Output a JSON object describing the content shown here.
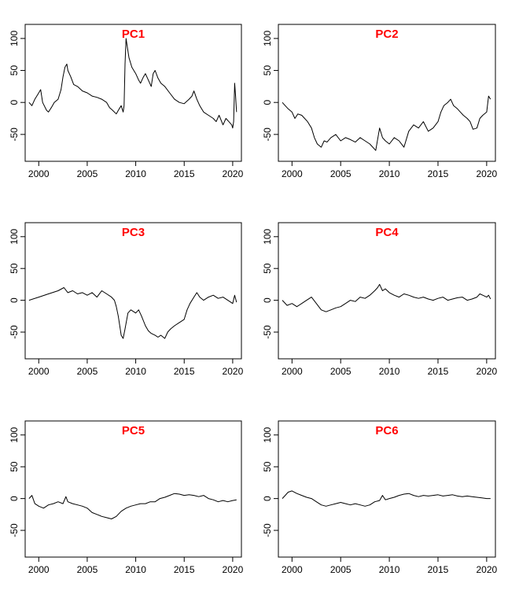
{
  "figure": {
    "background": "#ffffff",
    "line_color": "#000000",
    "title_color": "#ff0000"
  },
  "chart_data": [
    {
      "type": "line",
      "title": "PC1",
      "xlabel": "",
      "ylabel": "",
      "xlim": [
        1998.6,
        2020.9
      ],
      "ylim": [
        -92,
        122
      ],
      "xticks": [
        2000,
        2005,
        2010,
        2015,
        2020
      ],
      "yticks": [
        -50,
        0,
        50,
        100
      ],
      "grid": false,
      "series": [
        {
          "x": [
            1999.0,
            1999.3,
            1999.6,
            2000.0,
            2000.2,
            2000.4,
            2000.8,
            2001.0,
            2001.3,
            2001.6,
            2002.0,
            2002.3,
            2002.5,
            2002.7,
            2002.9,
            2003.0,
            2003.3,
            2003.6,
            2004.0,
            2004.5,
            2005.0,
            2005.5,
            2006.0,
            2006.5,
            2007.0,
            2007.3,
            2007.6,
            2008.0,
            2008.3,
            2008.5,
            2008.7,
            2008.8,
            2008.9,
            2009.0,
            2009.1,
            2009.3,
            2009.6,
            2010.0,
            2010.3,
            2010.5,
            2010.8,
            2011.0,
            2011.3,
            2011.6,
            2011.8,
            2012.0,
            2012.3,
            2012.6,
            2013.0,
            2013.5,
            2014.0,
            2014.5,
            2015.0,
            2015.5,
            2015.8,
            2016.0,
            2016.3,
            2016.6,
            2017.0,
            2017.5,
            2018.0,
            2018.3,
            2018.6,
            2019.0,
            2019.3,
            2019.6,
            2019.9,
            2020.0,
            2020.1,
            2020.2,
            2020.3,
            2020.4
          ],
          "y": [
            0,
            -5,
            5,
            15,
            20,
            0,
            -12,
            -15,
            -8,
            0,
            5,
            20,
            40,
            55,
            60,
            50,
            40,
            28,
            25,
            18,
            15,
            10,
            8,
            5,
            0,
            -8,
            -12,
            -18,
            -10,
            -5,
            -15,
            -5,
            60,
            100,
            90,
            70,
            55,
            45,
            35,
            30,
            40,
            45,
            35,
            25,
            45,
            50,
            38,
            30,
            25,
            15,
            5,
            0,
            -2,
            5,
            10,
            18,
            5,
            -5,
            -15,
            -20,
            -25,
            -30,
            -20,
            -35,
            -25,
            -30,
            -35,
            -40,
            -30,
            30,
            10,
            -15
          ]
        }
      ]
    },
    {
      "type": "line",
      "title": "PC2",
      "xlabel": "",
      "ylabel": "",
      "xlim": [
        1998.6,
        2020.9
      ],
      "ylim": [
        -92,
        122
      ],
      "xticks": [
        2000,
        2005,
        2010,
        2015,
        2020
      ],
      "yticks": [
        -50,
        0,
        50,
        100
      ],
      "grid": false,
      "series": [
        {
          "x": [
            1999.0,
            1999.3,
            1999.6,
            2000.0,
            2000.3,
            2000.6,
            2001.0,
            2001.3,
            2001.6,
            2002.0,
            2002.3,
            2002.6,
            2003.0,
            2003.3,
            2003.6,
            2004.0,
            2004.5,
            2005.0,
            2005.5,
            2006.0,
            2006.5,
            2007.0,
            2007.5,
            2008.0,
            2008.3,
            2008.6,
            2009.0,
            2009.3,
            2009.6,
            2010.0,
            2010.5,
            2011.0,
            2011.5,
            2012.0,
            2012.5,
            2013.0,
            2013.5,
            2014.0,
            2014.5,
            2015.0,
            2015.3,
            2015.6,
            2016.0,
            2016.3,
            2016.6,
            2017.0,
            2017.3,
            2017.6,
            2018.0,
            2018.3,
            2018.6,
            2019.0,
            2019.3,
            2019.6,
            2020.0,
            2020.2,
            2020.4
          ],
          "y": [
            0,
            -5,
            -10,
            -15,
            -25,
            -18,
            -20,
            -25,
            -30,
            -40,
            -55,
            -65,
            -70,
            -60,
            -62,
            -55,
            -50,
            -60,
            -55,
            -58,
            -62,
            -55,
            -60,
            -65,
            -70,
            -75,
            -40,
            -55,
            -60,
            -65,
            -55,
            -60,
            -70,
            -45,
            -35,
            -40,
            -30,
            -45,
            -40,
            -30,
            -15,
            -5,
            0,
            5,
            -5,
            -10,
            -15,
            -20,
            -25,
            -30,
            -42,
            -40,
            -25,
            -20,
            -15,
            10,
            5
          ]
        }
      ]
    },
    {
      "type": "line",
      "title": "PC3",
      "xlabel": "",
      "ylabel": "",
      "xlim": [
        1998.6,
        2020.9
      ],
      "ylim": [
        -92,
        122
      ],
      "xticks": [
        2000,
        2005,
        2010,
        2015,
        2020
      ],
      "yticks": [
        -50,
        0,
        50,
        100
      ],
      "grid": false,
      "series": [
        {
          "x": [
            1999.0,
            2000.0,
            2001.0,
            2002.0,
            2002.6,
            2003.0,
            2003.5,
            2004.0,
            2004.5,
            2005.0,
            2005.5,
            2006.0,
            2006.5,
            2007.0,
            2007.5,
            2007.8,
            2008.0,
            2008.2,
            2008.4,
            2008.5,
            2008.7,
            2008.9,
            2009.2,
            2009.5,
            2010.0,
            2010.3,
            2010.6,
            2011.0,
            2011.3,
            2011.6,
            2012.0,
            2012.3,
            2012.6,
            2013.0,
            2013.3,
            2013.6,
            2014.0,
            2014.5,
            2015.0,
            2015.3,
            2015.6,
            2016.0,
            2016.3,
            2016.6,
            2017.0,
            2017.5,
            2018.0,
            2018.5,
            2019.0,
            2019.5,
            2020.0,
            2020.2,
            2020.4
          ],
          "y": [
            0,
            5,
            10,
            15,
            20,
            12,
            15,
            10,
            12,
            8,
            12,
            5,
            15,
            10,
            5,
            0,
            -10,
            -25,
            -45,
            -55,
            -60,
            -45,
            -20,
            -15,
            -20,
            -15,
            -25,
            -40,
            -48,
            -52,
            -55,
            -58,
            -55,
            -60,
            -50,
            -45,
            -40,
            -35,
            -30,
            -15,
            -5,
            5,
            12,
            5,
            0,
            5,
            8,
            3,
            5,
            0,
            -5,
            8,
            -3
          ]
        }
      ]
    },
    {
      "type": "line",
      "title": "PC4",
      "xlabel": "",
      "ylabel": "",
      "xlim": [
        1998.6,
        2020.9
      ],
      "ylim": [
        -92,
        122
      ],
      "xticks": [
        2000,
        2005,
        2010,
        2015,
        2020
      ],
      "yticks": [
        -50,
        0,
        50,
        100
      ],
      "grid": false,
      "series": [
        {
          "x": [
            1999.0,
            1999.5,
            2000.0,
            2000.5,
            2001.0,
            2001.5,
            2002.0,
            2002.5,
            2003.0,
            2003.5,
            2004.0,
            2004.5,
            2005.0,
            2005.5,
            2006.0,
            2006.5,
            2007.0,
            2007.5,
            2008.0,
            2008.5,
            2008.8,
            2009.0,
            2009.3,
            2009.6,
            2010.0,
            2010.5,
            2011.0,
            2011.5,
            2012.0,
            2012.5,
            2013.0,
            2013.5,
            2014.0,
            2014.5,
            2015.0,
            2015.5,
            2016.0,
            2016.5,
            2017.0,
            2017.5,
            2018.0,
            2018.5,
            2019.0,
            2019.3,
            2019.6,
            2020.0,
            2020.2,
            2020.4
          ],
          "y": [
            0,
            -8,
            -5,
            -10,
            -5,
            0,
            5,
            -5,
            -15,
            -18,
            -15,
            -12,
            -10,
            -5,
            0,
            -2,
            5,
            3,
            8,
            15,
            20,
            25,
            15,
            18,
            12,
            8,
            5,
            10,
            8,
            5,
            3,
            5,
            2,
            0,
            3,
            5,
            0,
            2,
            4,
            5,
            0,
            2,
            5,
            10,
            8,
            5,
            8,
            2
          ]
        }
      ]
    },
    {
      "type": "line",
      "title": "PC5",
      "xlabel": "",
      "ylabel": "",
      "xlim": [
        1998.6,
        2020.9
      ],
      "ylim": [
        -92,
        122
      ],
      "xticks": [
        2000,
        2005,
        2010,
        2015,
        2020
      ],
      "yticks": [
        -50,
        0,
        50,
        100
      ],
      "grid": false,
      "series": [
        {
          "x": [
            1999.0,
            1999.3,
            1999.6,
            2000.0,
            2000.5,
            2001.0,
            2001.5,
            2002.0,
            2002.5,
            2002.8,
            2003.0,
            2003.5,
            2004.0,
            2004.5,
            2005.0,
            2005.5,
            2006.0,
            2006.5,
            2007.0,
            2007.5,
            2008.0,
            2008.5,
            2009.0,
            2009.5,
            2010.0,
            2010.5,
            2011.0,
            2011.5,
            2012.0,
            2012.5,
            2013.0,
            2013.5,
            2014.0,
            2014.5,
            2015.0,
            2015.5,
            2016.0,
            2016.5,
            2017.0,
            2017.5,
            2018.0,
            2018.5,
            2019.0,
            2019.5,
            2020.0,
            2020.4
          ],
          "y": [
            0,
            5,
            -8,
            -12,
            -15,
            -10,
            -8,
            -5,
            -8,
            3,
            -5,
            -8,
            -10,
            -12,
            -15,
            -22,
            -25,
            -28,
            -30,
            -32,
            -28,
            -20,
            -15,
            -12,
            -10,
            -8,
            -8,
            -5,
            -5,
            0,
            2,
            5,
            8,
            7,
            5,
            6,
            5,
            3,
            5,
            0,
            -2,
            -5,
            -3,
            -5,
            -3,
            -2
          ]
        }
      ]
    },
    {
      "type": "line",
      "title": "PC6",
      "xlabel": "",
      "ylabel": "",
      "xlim": [
        1998.6,
        2020.9
      ],
      "ylim": [
        -92,
        122
      ],
      "xticks": [
        2000,
        2005,
        2010,
        2015,
        2020
      ],
      "yticks": [
        -50,
        0,
        50,
        100
      ],
      "grid": false,
      "series": [
        {
          "x": [
            1999.0,
            1999.3,
            1999.6,
            2000.0,
            2000.5,
            2001.0,
            2001.5,
            2002.0,
            2002.5,
            2003.0,
            2003.5,
            2004.0,
            2004.5,
            2005.0,
            2005.5,
            2006.0,
            2006.5,
            2007.0,
            2007.5,
            2008.0,
            2008.5,
            2009.0,
            2009.3,
            2009.6,
            2010.0,
            2010.5,
            2011.0,
            2011.5,
            2012.0,
            2012.5,
            2013.0,
            2013.5,
            2014.0,
            2014.5,
            2015.0,
            2015.5,
            2016.0,
            2016.5,
            2017.0,
            2017.5,
            2018.0,
            2018.5,
            2019.0,
            2019.5,
            2020.0,
            2020.4
          ],
          "y": [
            0,
            5,
            10,
            12,
            8,
            5,
            2,
            0,
            -5,
            -10,
            -12,
            -10,
            -8,
            -6,
            -8,
            -10,
            -8,
            -10,
            -12,
            -10,
            -5,
            -3,
            5,
            -2,
            0,
            2,
            5,
            7,
            8,
            5,
            3,
            5,
            4,
            5,
            6,
            4,
            5,
            6,
            4,
            3,
            4,
            3,
            2,
            1,
            0,
            0
          ]
        }
      ]
    }
  ]
}
